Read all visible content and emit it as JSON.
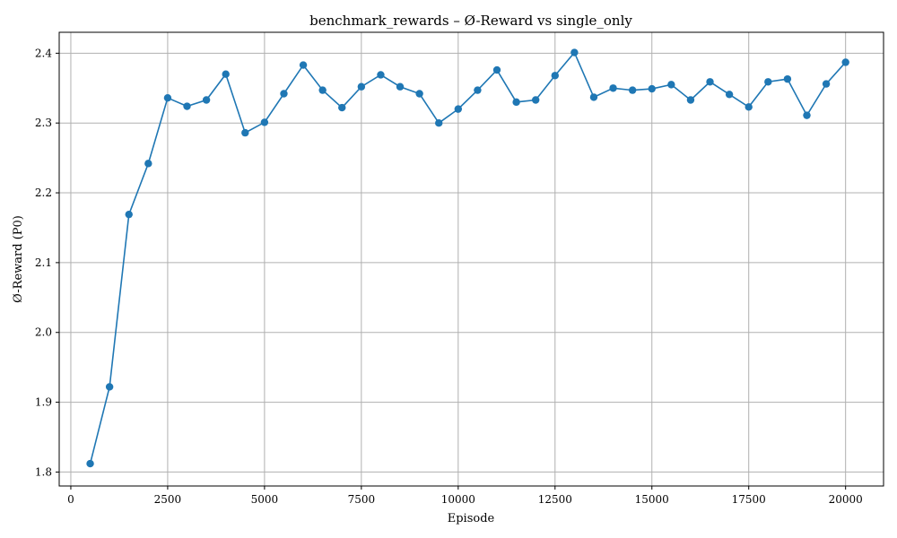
{
  "chart_data": {
    "type": "line",
    "title": "benchmark_rewards – Ø-Reward vs single_only",
    "xlabel": "Episode",
    "ylabel": "Ø-Reward (P0)",
    "xlim": [
      -300,
      20980
    ],
    "ylim": [
      1.78,
      2.43
    ],
    "grid": true,
    "color": "#1f77b4",
    "xticks": [
      0,
      2500,
      5000,
      7500,
      10000,
      12500,
      15000,
      17500,
      20000
    ],
    "yticks": [
      1.8,
      1.9,
      2.0,
      2.1,
      2.2,
      2.3,
      2.4
    ],
    "series": [
      {
        "x": [
          500,
          1000,
          1500,
          2000,
          2500,
          3000,
          3500,
          4000,
          4500,
          5000,
          5500,
          6000,
          6500,
          7000,
          7500,
          8000,
          8500,
          9000,
          9500,
          10000,
          10500,
          11000,
          11500,
          12000,
          12500,
          13000,
          13500,
          14000,
          14500,
          15000,
          15500,
          16000,
          16500,
          17000,
          17500,
          18000,
          18500,
          19000,
          19500,
          20000
        ],
        "y": [
          1.812,
          1.922,
          2.169,
          2.242,
          2.336,
          2.324,
          2.333,
          2.37,
          2.286,
          2.301,
          2.342,
          2.383,
          2.347,
          2.322,
          2.352,
          2.369,
          2.352,
          2.342,
          2.3,
          2.32,
          2.347,
          2.376,
          2.33,
          2.333,
          2.368,
          2.401,
          2.337,
          2.35,
          2.347,
          2.349,
          2.355,
          2.333,
          2.359,
          2.341,
          2.323,
          2.359,
          2.363,
          2.311,
          2.356,
          2.387
        ]
      }
    ]
  }
}
